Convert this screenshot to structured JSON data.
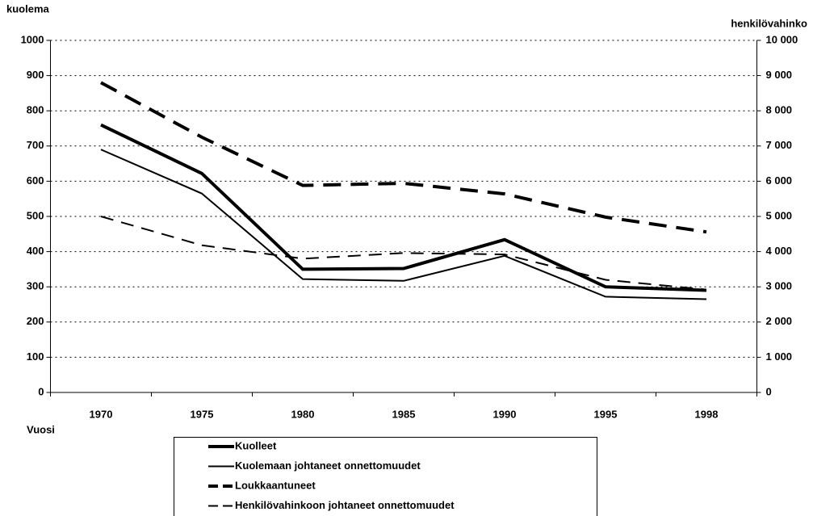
{
  "chart_data": {
    "type": "line",
    "y_label": "kuolema",
    "y2_label": "henkilövahinko",
    "x_label": "Vuosi",
    "categories": [
      "1970",
      "1975",
      "1980",
      "1985",
      "1990",
      "1995",
      "1998"
    ],
    "series": [
      {
        "name": "Kuolleet",
        "color": "#000000",
        "values": [
          760,
          622,
          350,
          352,
          434,
          300,
          290
        ]
      },
      {
        "name": "Kuolemaan johtaneet onnettomuudet",
        "color": "#000000",
        "values": [
          690,
          565,
          322,
          317,
          388,
          272,
          265
        ]
      },
      {
        "name": "Loukkaantuneet",
        "color": "#000000",
        "axis": "y2",
        "values": [
          8800,
          7250,
          5880,
          5940,
          5640,
          4980,
          4560
        ]
      },
      {
        "name": "Henkilövahinkoon johtaneet onnettomuudet",
        "color": "#000000",
        "axis": "y2",
        "values": [
          5000,
          4180,
          3800,
          3960,
          3920,
          3200,
          2920
        ]
      }
    ],
    "ylim": [
      0,
      1000
    ],
    "yticks": [
      0,
      100,
      200,
      300,
      400,
      500,
      600,
      700,
      800,
      900,
      1000
    ],
    "y2lim": [
      0,
      10000
    ],
    "y2ticks": [
      0,
      {
        "value": 1000,
        "label": "1 000"
      },
      {
        "value": 2000,
        "label": "2 000"
      },
      {
        "value": 3000,
        "label": "3 000"
      },
      {
        "value": 4000,
        "label": "4 000"
      },
      {
        "value": 5000,
        "label": "5 000"
      },
      {
        "value": 6000,
        "label": "6 000"
      },
      {
        "value": 7000,
        "label": "7 000"
      },
      {
        "value": 8000,
        "label": "8 000"
      },
      {
        "value": 9000,
        "label": "9 000"
      },
      {
        "value": 10000,
        "label": "10 000"
      }
    ],
    "grid": true
  }
}
